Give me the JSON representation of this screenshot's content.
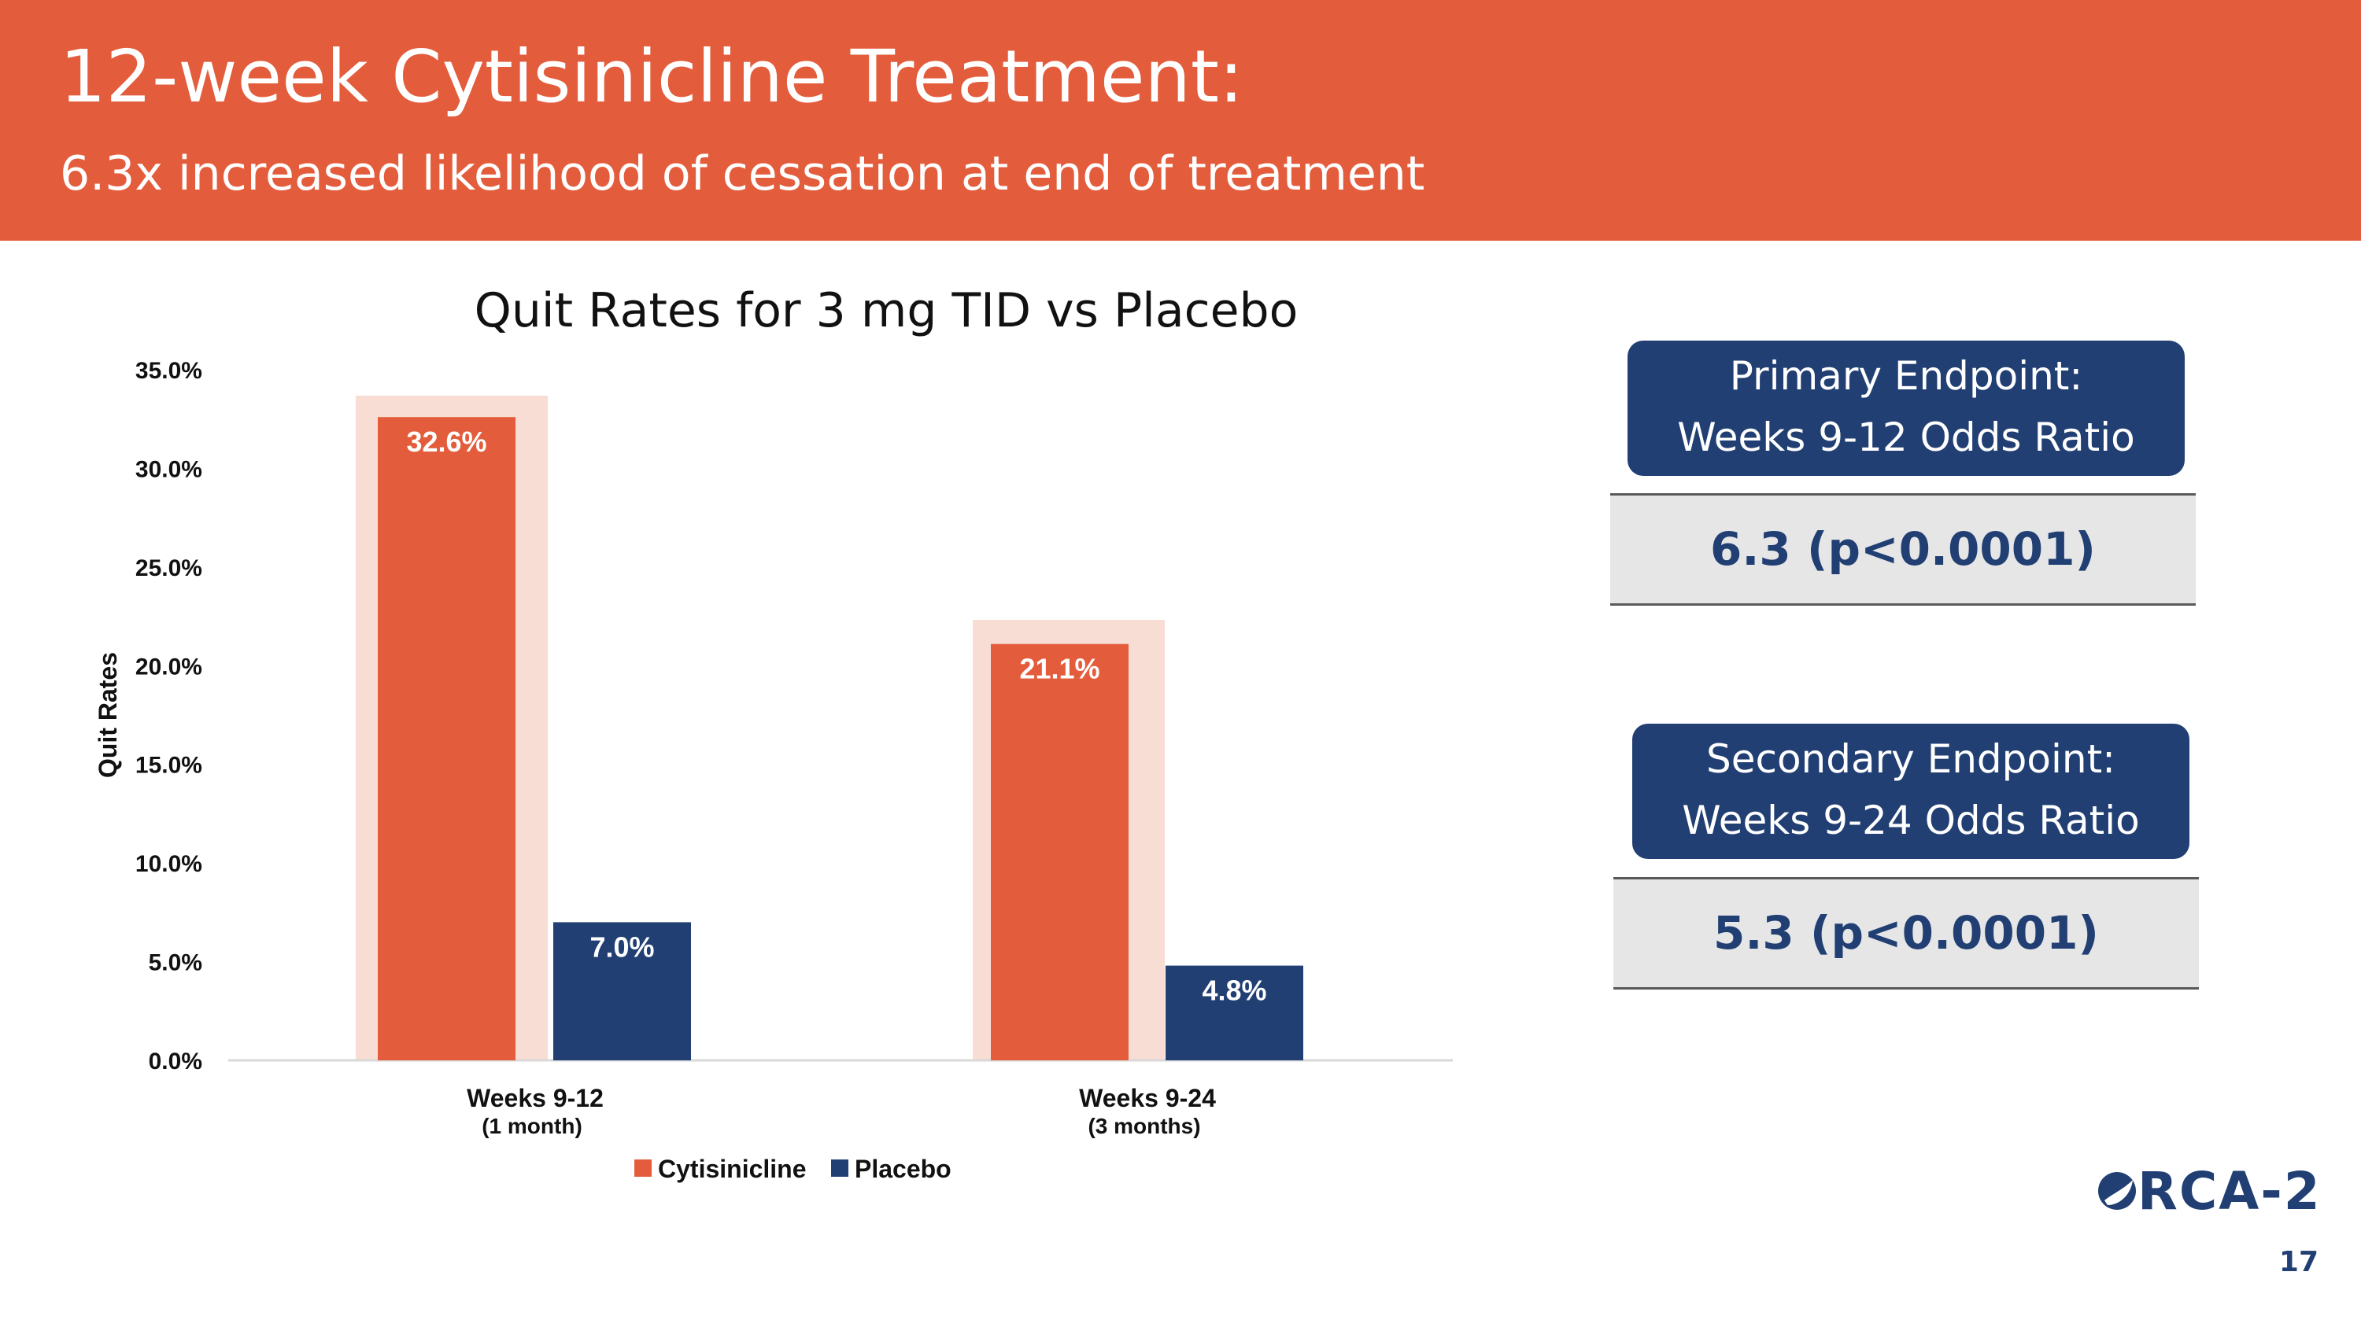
{
  "header": {
    "title": "12-week Cytisinicline Treatment:",
    "subtitle": "6.3x increased likelihood of cessation at end of treatment"
  },
  "colors": {
    "accent": "#E35D3C",
    "navy": "#213F73",
    "highlight": "#F8DDD4",
    "panel_gray": "#E6E6E6"
  },
  "chart_data": {
    "type": "bar",
    "title": "Quit Rates for 3 mg TID vs Placebo",
    "ylabel": "Quit Rates",
    "xlabel": "",
    "ylim": [
      0,
      35
    ],
    "yticks": [
      "35.0%",
      "30.0%",
      "25.0%",
      "20.0%",
      "15.0%",
      "10.0%",
      "5.0%",
      "0.0%"
    ],
    "categories": [
      {
        "label": "Weeks 9-12",
        "sublabel": "(1 month)"
      },
      {
        "label": "Weeks 9-24",
        "sublabel": "(3 months)"
      }
    ],
    "series": [
      {
        "name": "Cytisinicline",
        "color": "#E35D3C",
        "values": [
          32.6,
          21.1
        ],
        "labels": [
          "32.6%",
          "21.1%"
        ]
      },
      {
        "name": "Placebo",
        "color": "#213F73",
        "values": [
          7.0,
          4.8
        ],
        "labels": [
          "7.0%",
          "4.8%"
        ]
      }
    ],
    "grid": false,
    "legend_position": "bottom",
    "highlight_series": "Cytisinicline"
  },
  "endpoints": {
    "primary": {
      "title_line1": "Primary Endpoint:",
      "title_line2": "Weeks 9-12 Odds Ratio",
      "value": "6.3 (p<0.0001)"
    },
    "secondary": {
      "title_line1": "Secondary Endpoint:",
      "title_line2": "Weeks 9-24 Odds Ratio",
      "value": "5.3 (p<0.0001)"
    }
  },
  "logo": {
    "text": "RCA-2",
    "icon": "orca-logo-icon"
  },
  "page_number": "17"
}
